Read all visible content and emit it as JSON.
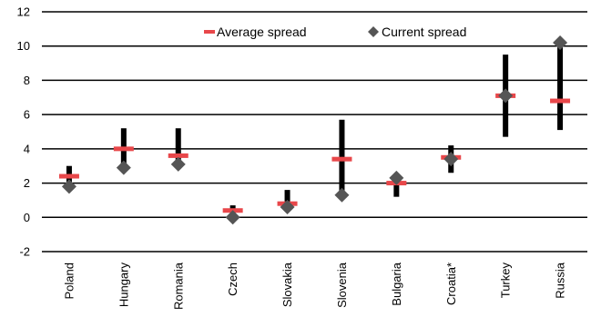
{
  "chart_data": {
    "type": "range-bar-with-markers",
    "title": "",
    "xlabel": "",
    "ylabel": "",
    "ylim": [
      -2,
      12
    ],
    "yticks": [
      -2,
      0,
      2,
      4,
      6,
      8,
      10,
      12
    ],
    "grid": true,
    "legend_position": "top-right",
    "categories": [
      "Poland",
      "Hungary",
      "Romania",
      "Czech",
      "Slovakia",
      "Slovenia",
      "Bulgaria",
      "Croatia*",
      "Turkey",
      "Russia"
    ],
    "range_min": [
      1.9,
      2.9,
      3.0,
      0.0,
      0.5,
      1.3,
      1.2,
      2.6,
      4.7,
      5.1
    ],
    "range_max": [
      3.0,
      5.2,
      5.2,
      0.7,
      1.6,
      5.7,
      2.5,
      4.2,
      9.5,
      10.3
    ],
    "series": [
      {
        "name": "Average spread",
        "marker": "dash",
        "color": "#e8474a",
        "values": [
          2.4,
          4.0,
          3.6,
          0.4,
          0.8,
          3.4,
          2.0,
          3.5,
          7.1,
          6.8
        ]
      },
      {
        "name": "Current spread",
        "marker": "diamond",
        "color": "#555555",
        "values": [
          1.8,
          2.9,
          3.1,
          0.0,
          0.6,
          1.3,
          2.3,
          3.4,
          7.1,
          10.2
        ]
      }
    ],
    "range_color": "#000000"
  }
}
